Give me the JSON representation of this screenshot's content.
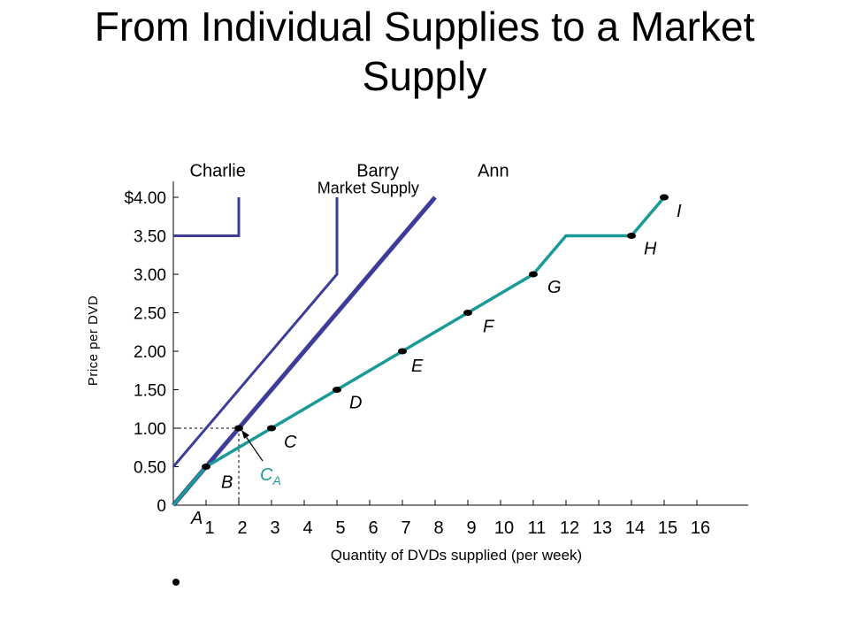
{
  "page": {
    "title_line1": "From Individual Supplies to a Market",
    "title_line2": "Supply"
  },
  "chart_data": {
    "type": "line",
    "xlabel": "Quantity of DVDs supplied (per week)",
    "ylabel": "Price per DVD",
    "xlim": [
      0,
      17
    ],
    "ylim": [
      0,
      4
    ],
    "x_ticks": [
      "1",
      "2",
      "3",
      "4",
      "5",
      "6",
      "7",
      "8",
      "9",
      "10",
      "11",
      "12",
      "13",
      "14",
      "15",
      "16"
    ],
    "y_ticks": [
      {
        "value": 0,
        "label": "0"
      },
      {
        "value": 0.5,
        "label": "0.50"
      },
      {
        "value": 1.0,
        "label": "1.00"
      },
      {
        "value": 1.5,
        "label": "1.50"
      },
      {
        "value": 2.0,
        "label": "2.00"
      },
      {
        "value": 2.5,
        "label": "2.50"
      },
      {
        "value": 3.0,
        "label": "3.00"
      },
      {
        "value": 3.5,
        "label": "3.50"
      },
      {
        "value": 4.0,
        "label": "$4.00"
      }
    ],
    "series": [
      {
        "name": "Charlie",
        "color": "#3d3d99",
        "width": 3,
        "points": [
          [
            0,
            3.5
          ],
          [
            2,
            3.5
          ],
          [
            2,
            4.0
          ]
        ]
      },
      {
        "name": "Barry",
        "color": "#3d3d99",
        "width": 3,
        "points": [
          [
            0,
            0.5
          ],
          [
            5,
            3.0
          ],
          [
            5,
            4.0
          ]
        ]
      },
      {
        "name": "Ann",
        "color": "#3d3d99",
        "width": 5,
        "points": [
          [
            0,
            0
          ],
          [
            8,
            4.0
          ]
        ]
      },
      {
        "name": "Market Supply",
        "color": "#1a9a96",
        "width": 3.5,
        "points": [
          [
            0,
            0
          ],
          [
            1,
            0.5
          ],
          [
            3,
            1.0
          ],
          [
            5,
            1.5
          ],
          [
            7,
            2.0
          ],
          [
            9,
            2.5
          ],
          [
            11,
            3.0
          ],
          [
            12,
            3.5
          ],
          [
            14,
            3.5
          ],
          [
            15,
            4.0
          ]
        ]
      }
    ],
    "points": [
      {
        "label": "A",
        "x": 0,
        "y": 0
      },
      {
        "label": "B",
        "x": 1,
        "y": 0.5
      },
      {
        "label": "C",
        "x": 3,
        "y": 1.0
      },
      {
        "label": "D",
        "x": 5,
        "y": 1.5
      },
      {
        "label": "E",
        "x": 7,
        "y": 2.0
      },
      {
        "label": "F",
        "x": 9,
        "y": 2.5
      },
      {
        "label": "G",
        "x": 11,
        "y": 3.0
      },
      {
        "label": "H",
        "x": 14,
        "y": 3.5
      },
      {
        "label": "I",
        "x": 15,
        "y": 4.0
      }
    ],
    "highlight": {
      "label_main": "C",
      "label_sub": "A",
      "x": 2,
      "y": 1.0,
      "color": "#1a9a96"
    },
    "guides": {
      "x": 2,
      "y": 1.0
    }
  }
}
